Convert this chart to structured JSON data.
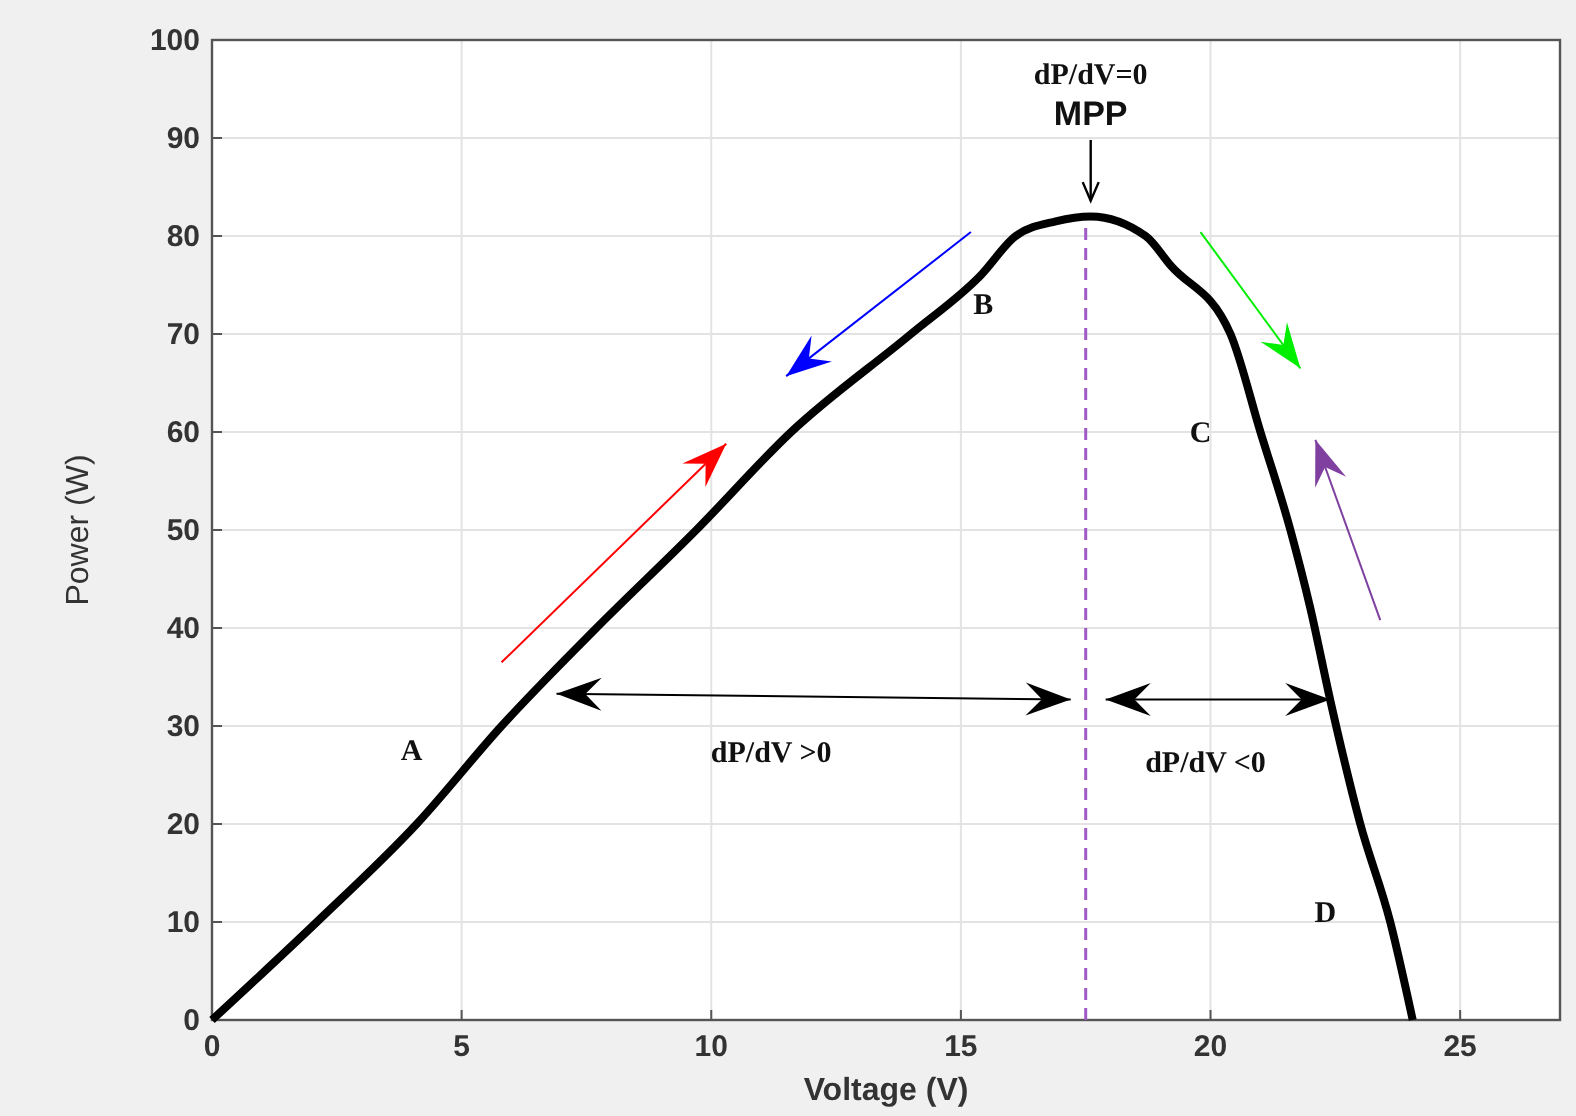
{
  "chart_data": {
    "type": "line",
    "xlabel": "Voltage (V)",
    "ylabel": "Power (W)",
    "xlim": [
      0,
      27
    ],
    "ylim": [
      0,
      100
    ],
    "xticks": [
      0,
      5,
      10,
      15,
      20,
      25
    ],
    "yticks": [
      0,
      10,
      20,
      30,
      40,
      50,
      60,
      70,
      80,
      90,
      100
    ],
    "grid": true,
    "marker": "none",
    "line_style": "solid",
    "series": [
      {
        "color": "#000000",
        "x": [
          0,
          2.1,
          4.1,
          5.8,
          7.7,
          9.7,
          11.6,
          14,
          15.4,
          16.1,
          16.9,
          17.6,
          18.7,
          19.2,
          20.4,
          21,
          21.6,
          22,
          22.4,
          23,
          23.6,
          24.05
        ],
        "values": [
          0,
          10,
          20,
          30,
          40,
          50,
          60,
          70,
          76,
          80,
          81.5,
          82,
          80,
          77,
          70,
          60,
          50,
          42,
          32.6,
          20,
          10,
          0
        ]
      }
    ],
    "ref_lines": [
      {
        "axis": "x",
        "value": 17.5,
        "color": "#a05ac8",
        "line_style": "dashed"
      }
    ],
    "annotations": [
      "dP/dV=0",
      "MPP",
      "A",
      "B",
      "C",
      "D",
      "dP/dV >0",
      "dP/dV <0"
    ]
  }
}
